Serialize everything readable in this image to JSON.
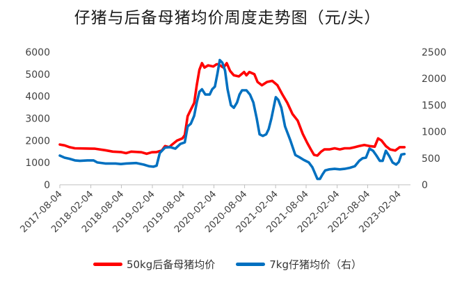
{
  "chart_data": {
    "type": "line",
    "title": "仔猪与后备母猪均价周度走势图（元/头）",
    "x_ticks": [
      "2017-08-04",
      "2018-02-04",
      "2018-08-04",
      "2019-02-04",
      "2019-08-04",
      "2020-02-04",
      "2020-08-04",
      "2021-02-04",
      "2021-08-04",
      "2022-02-04",
      "2022-08-04",
      "2023-02-04"
    ],
    "x_range": [
      "2017-08-04",
      "2023-04-15"
    ],
    "y_left": {
      "range": [
        0,
        6000
      ],
      "ticks": [
        0,
        1000,
        2000,
        3000,
        4000,
        5000,
        6000
      ]
    },
    "y_right": {
      "range": [
        0,
        2500
      ],
      "ticks": [
        0,
        500,
        1000,
        1500,
        2000,
        2500
      ]
    },
    "grid": false,
    "legend_position": "bottom",
    "series": [
      {
        "name": "50kg后备母猪均价",
        "axis": "left",
        "color": "#ff0000",
        "points": [
          [
            "2017-08-04",
            1820
          ],
          [
            "2017-09-01",
            1780
          ],
          [
            "2017-10-01",
            1700
          ],
          [
            "2017-11-01",
            1650
          ],
          [
            "2018-01-01",
            1640
          ],
          [
            "2018-03-01",
            1630
          ],
          [
            "2018-05-01",
            1560
          ],
          [
            "2018-06-15",
            1500
          ],
          [
            "2018-08-01",
            1480
          ],
          [
            "2018-09-01",
            1430
          ],
          [
            "2018-10-01",
            1500
          ],
          [
            "2018-12-01",
            1470
          ],
          [
            "2019-01-01",
            1400
          ],
          [
            "2019-02-01",
            1470
          ],
          [
            "2019-03-01",
            1480
          ],
          [
            "2019-04-01",
            1550
          ],
          [
            "2019-04-20",
            1750
          ],
          [
            "2019-05-15",
            1700
          ],
          [
            "2019-06-01",
            1820
          ],
          [
            "2019-07-01",
            2000
          ],
          [
            "2019-08-01",
            2100
          ],
          [
            "2019-08-15",
            2250
          ],
          [
            "2019-09-01",
            3100
          ],
          [
            "2019-09-20",
            3400
          ],
          [
            "2019-10-10",
            3700
          ],
          [
            "2019-10-25",
            4500
          ],
          [
            "2019-11-10",
            5200
          ],
          [
            "2019-11-25",
            5500
          ],
          [
            "2019-12-10",
            5300
          ],
          [
            "2020-01-01",
            5400
          ],
          [
            "2020-02-01",
            5350
          ],
          [
            "2020-02-20",
            5450
          ],
          [
            "2020-03-01",
            5450
          ],
          [
            "2020-04-01",
            5300
          ],
          [
            "2020-04-20",
            5500
          ],
          [
            "2020-05-10",
            5150
          ],
          [
            "2020-06-01",
            4950
          ],
          [
            "2020-07-01",
            4900
          ],
          [
            "2020-08-01",
            5100
          ],
          [
            "2020-08-15",
            4950
          ],
          [
            "2020-09-01",
            5100
          ],
          [
            "2020-10-01",
            5000
          ],
          [
            "2020-10-20",
            4650
          ],
          [
            "2020-11-15",
            4500
          ],
          [
            "2020-12-15",
            4650
          ],
          [
            "2021-01-15",
            4700
          ],
          [
            "2021-02-15",
            4500
          ],
          [
            "2021-03-15",
            4100
          ],
          [
            "2021-04-15",
            3700
          ],
          [
            "2021-05-15",
            3200
          ],
          [
            "2021-06-15",
            2900
          ],
          [
            "2021-07-15",
            2300
          ],
          [
            "2021-08-10",
            1900
          ],
          [
            "2021-09-01",
            1600
          ],
          [
            "2021-09-20",
            1350
          ],
          [
            "2021-10-10",
            1320
          ],
          [
            "2021-11-01",
            1500
          ],
          [
            "2021-11-20",
            1600
          ],
          [
            "2021-12-20",
            1600
          ],
          [
            "2022-01-20",
            1650
          ],
          [
            "2022-02-20",
            1600
          ],
          [
            "2022-03-20",
            1650
          ],
          [
            "2022-04-20",
            1650
          ],
          [
            "2022-05-20",
            1700
          ],
          [
            "2022-06-15",
            1750
          ],
          [
            "2022-07-15",
            1800
          ],
          [
            "2022-08-15",
            1750
          ],
          [
            "2022-09-15",
            1720
          ],
          [
            "2022-10-05",
            2100
          ],
          [
            "2022-10-25",
            2000
          ],
          [
            "2022-11-20",
            1750
          ],
          [
            "2022-12-15",
            1600
          ],
          [
            "2023-01-15",
            1550
          ],
          [
            "2023-02-10",
            1700
          ],
          [
            "2023-03-10",
            1700
          ]
        ]
      },
      {
        "name": "7kg仔猪均价（右）",
        "axis": "right",
        "color": "#0070c0",
        "points": [
          [
            "2017-08-04",
            550
          ],
          [
            "2017-09-01",
            510
          ],
          [
            "2017-10-01",
            490
          ],
          [
            "2017-11-01",
            460
          ],
          [
            "2017-12-01",
            450
          ],
          [
            "2018-01-15",
            460
          ],
          [
            "2018-02-20",
            460
          ],
          [
            "2018-03-15",
            420
          ],
          [
            "2018-05-01",
            400
          ],
          [
            "2018-07-01",
            400
          ],
          [
            "2018-08-01",
            390
          ],
          [
            "2018-09-01",
            400
          ],
          [
            "2018-11-01",
            410
          ],
          [
            "2018-12-15",
            380
          ],
          [
            "2019-01-15",
            350
          ],
          [
            "2019-02-10",
            340
          ],
          [
            "2019-03-01",
            360
          ],
          [
            "2019-03-20",
            600
          ],
          [
            "2019-04-20",
            700
          ],
          [
            "2019-05-20",
            710
          ],
          [
            "2019-06-20",
            680
          ],
          [
            "2019-07-20",
            770
          ],
          [
            "2019-08-15",
            800
          ],
          [
            "2019-09-01",
            1100
          ],
          [
            "2019-09-20",
            1150
          ],
          [
            "2019-10-10",
            1300
          ],
          [
            "2019-10-25",
            1550
          ],
          [
            "2019-11-10",
            1750
          ],
          [
            "2019-11-25",
            1800
          ],
          [
            "2019-12-15",
            1700
          ],
          [
            "2020-01-10",
            1700
          ],
          [
            "2020-01-25",
            1800
          ],
          [
            "2020-02-10",
            1850
          ],
          [
            "2020-02-25",
            2100
          ],
          [
            "2020-03-10",
            2350
          ],
          [
            "2020-03-25",
            2300
          ],
          [
            "2020-04-10",
            2150
          ],
          [
            "2020-04-25",
            1800
          ],
          [
            "2020-05-15",
            1500
          ],
          [
            "2020-06-01",
            1450
          ],
          [
            "2020-06-20",
            1550
          ],
          [
            "2020-07-05",
            1700
          ],
          [
            "2020-07-20",
            1780
          ],
          [
            "2020-08-15",
            1780
          ],
          [
            "2020-09-05",
            1700
          ],
          [
            "2020-09-25",
            1550
          ],
          [
            "2020-10-15",
            1250
          ],
          [
            "2020-11-01",
            950
          ],
          [
            "2020-11-20",
            920
          ],
          [
            "2020-12-10",
            950
          ],
          [
            "2020-12-25",
            1050
          ],
          [
            "2021-01-10",
            1250
          ],
          [
            "2021-02-05",
            1650
          ],
          [
            "2021-02-20",
            1600
          ],
          [
            "2021-03-10",
            1450
          ],
          [
            "2021-04-01",
            1100
          ],
          [
            "2021-05-01",
            850
          ],
          [
            "2021-06-01",
            560
          ],
          [
            "2021-06-25",
            520
          ],
          [
            "2021-07-20",
            470
          ],
          [
            "2021-08-20",
            420
          ],
          [
            "2021-09-10",
            330
          ],
          [
            "2021-09-25",
            220
          ],
          [
            "2021-10-10",
            110
          ],
          [
            "2021-10-25",
            110
          ],
          [
            "2021-11-10",
            200
          ],
          [
            "2021-11-25",
            270
          ],
          [
            "2021-12-20",
            290
          ],
          [
            "2022-01-20",
            300
          ],
          [
            "2022-02-20",
            290
          ],
          [
            "2022-03-20",
            300
          ],
          [
            "2022-04-20",
            320
          ],
          [
            "2022-05-20",
            350
          ],
          [
            "2022-06-15",
            450
          ],
          [
            "2022-07-05",
            500
          ],
          [
            "2022-07-25",
            510
          ],
          [
            "2022-08-15",
            680
          ],
          [
            "2022-09-05",
            640
          ],
          [
            "2022-09-25",
            550
          ],
          [
            "2022-10-15",
            450
          ],
          [
            "2022-11-01",
            450
          ],
          [
            "2022-11-20",
            640
          ],
          [
            "2022-12-10",
            540
          ],
          [
            "2022-12-30",
            420
          ],
          [
            "2023-01-20",
            380
          ],
          [
            "2023-02-05",
            430
          ],
          [
            "2023-02-20",
            570
          ],
          [
            "2023-03-10",
            580
          ]
        ]
      }
    ]
  }
}
